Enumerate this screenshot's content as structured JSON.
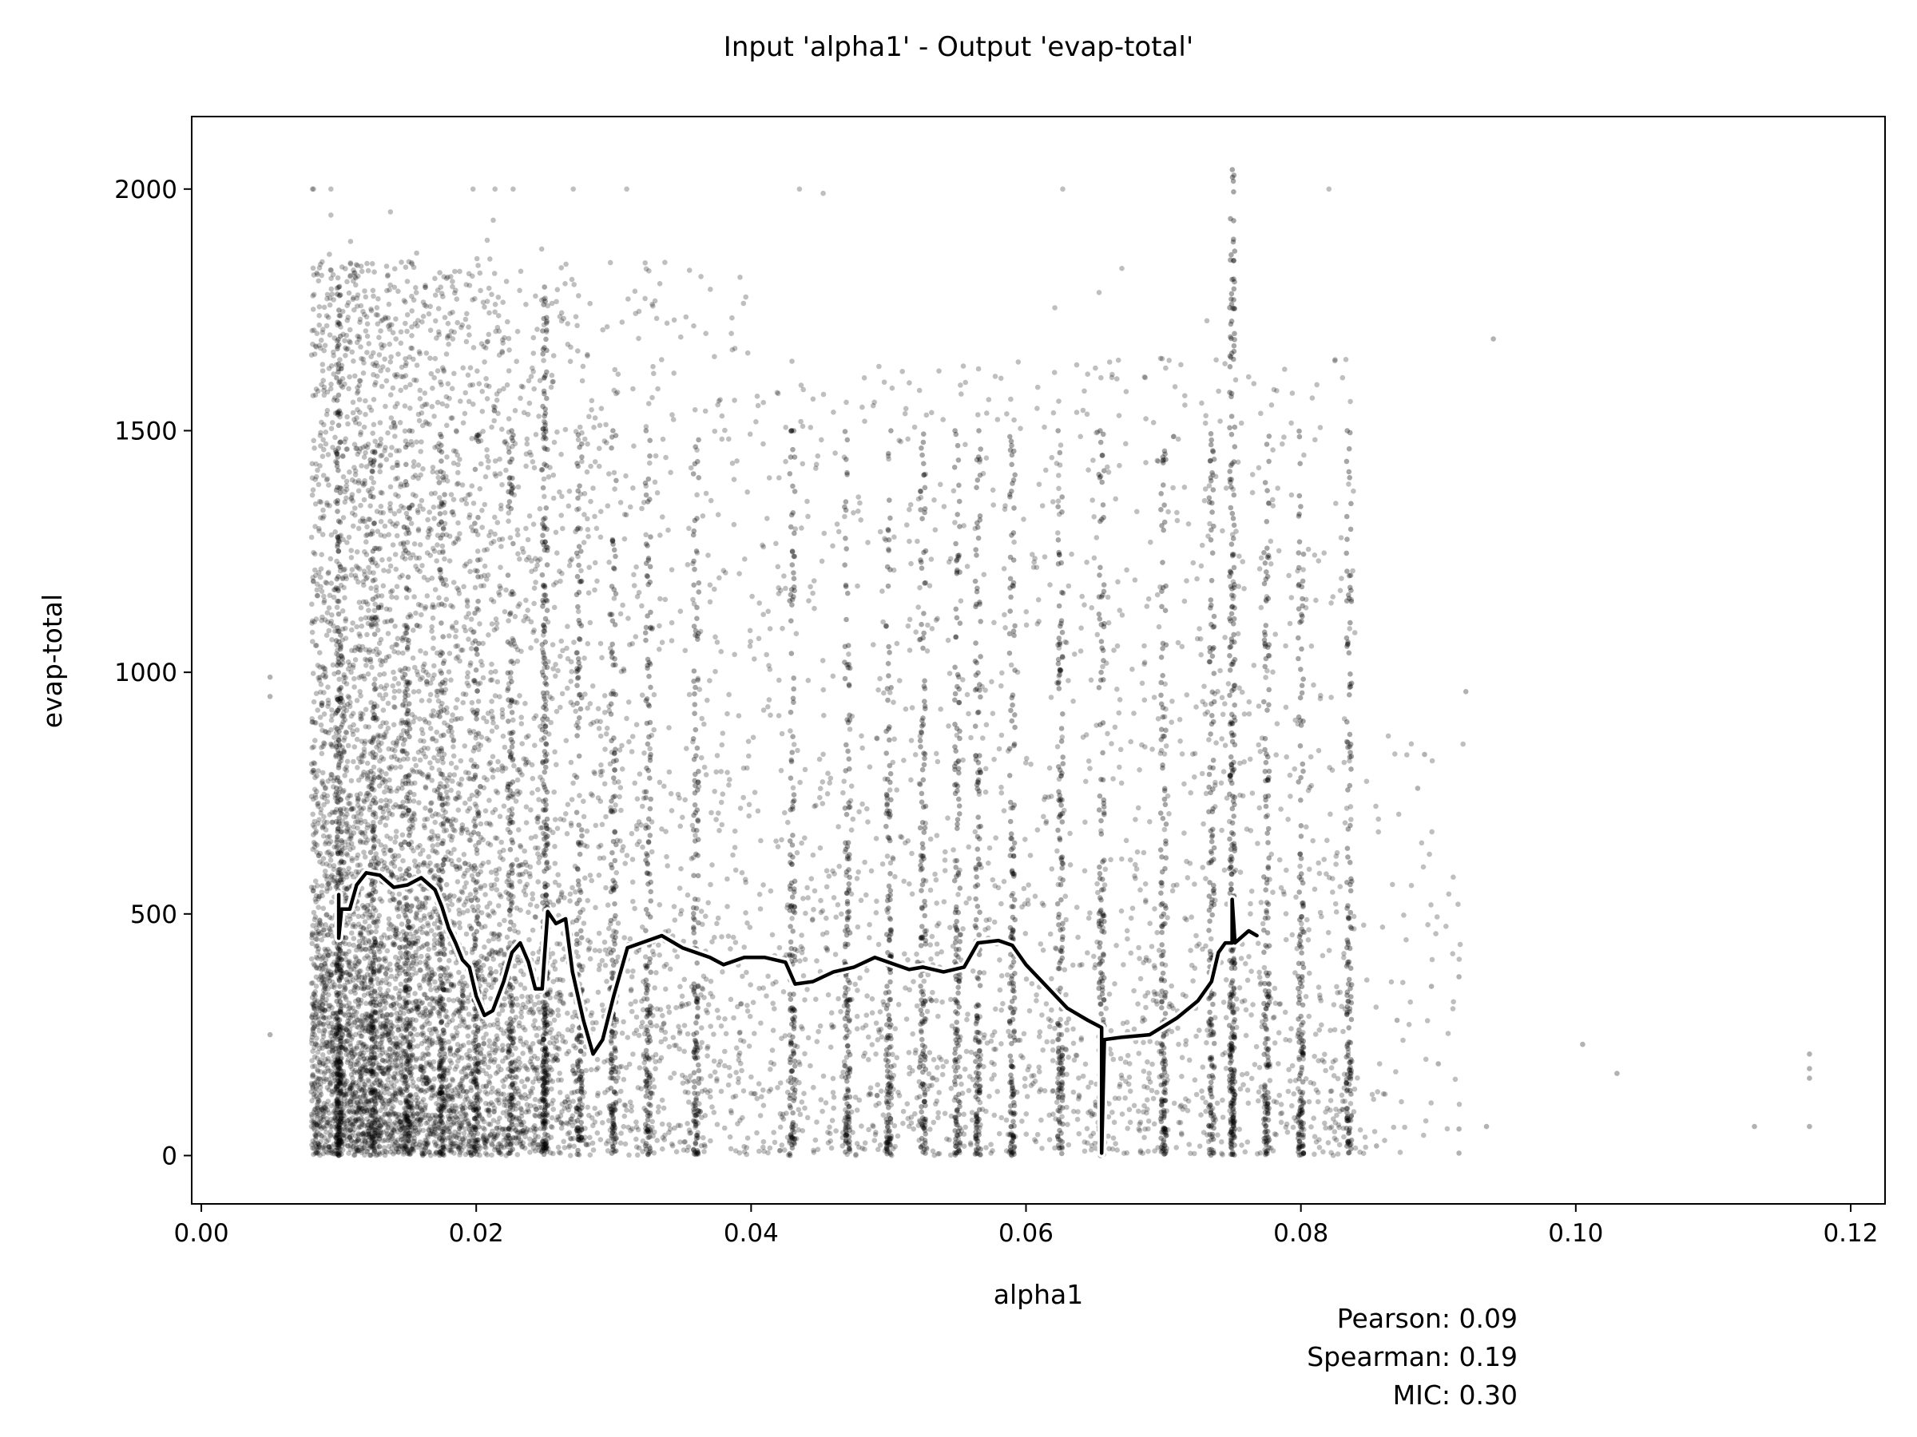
{
  "chart_data": {
    "type": "scatter",
    "title": "Input 'alpha1' - Output 'evap-total'",
    "xlabel": "alpha1",
    "ylabel": "evap-total",
    "xlim": [
      -0.0007,
      0.1225
    ],
    "ylim": [
      -100,
      2150
    ],
    "x_ticks": [
      0.0,
      0.02,
      0.04,
      0.06,
      0.08,
      0.1,
      0.12
    ],
    "x_tick_labels": [
      "0.00",
      "0.02",
      "0.04",
      "0.06",
      "0.08",
      "0.10",
      "0.12"
    ],
    "y_ticks": [
      0,
      500,
      1000,
      1500,
      2000
    ],
    "y_tick_labels": [
      "0",
      "500",
      "1000",
      "1500",
      "2000"
    ],
    "grid": false,
    "marker_color": "#000000",
    "marker_alpha": 0.25,
    "trend_color": "#000000",
    "trend_outline_color": "#ffffff",
    "scatter_summary": {
      "x_range": [
        0.005,
        0.117
      ],
      "y_range": [
        0,
        2050
      ],
      "dense_columns_x": [
        0.01,
        0.0125,
        0.015,
        0.0175,
        0.02,
        0.0225,
        0.025,
        0.0275,
        0.03,
        0.0325,
        0.036,
        0.043,
        0.047,
        0.05,
        0.0525,
        0.055,
        0.0565,
        0.059,
        0.0625,
        0.0655,
        0.07,
        0.0735,
        0.075,
        0.0775,
        0.08,
        0.0835
      ],
      "isolated_points": [
        {
          "x": 0.005,
          "y": 990
        },
        {
          "x": 0.005,
          "y": 950
        },
        {
          "x": 0.005,
          "y": 250
        },
        {
          "x": 0.0855,
          "y": 20
        },
        {
          "x": 0.087,
          "y": 280
        },
        {
          "x": 0.0885,
          "y": 760
        },
        {
          "x": 0.089,
          "y": 830
        },
        {
          "x": 0.0895,
          "y": 350
        },
        {
          "x": 0.09,
          "y": 190
        },
        {
          "x": 0.0915,
          "y": 370
        },
        {
          "x": 0.0915,
          "y": 55
        },
        {
          "x": 0.0915,
          "y": 5
        },
        {
          "x": 0.092,
          "y": 960
        },
        {
          "x": 0.0935,
          "y": 60
        },
        {
          "x": 0.094,
          "y": 1690
        },
        {
          "x": 0.1005,
          "y": 230
        },
        {
          "x": 0.103,
          "y": 170
        },
        {
          "x": 0.113,
          "y": 60
        },
        {
          "x": 0.117,
          "y": 210
        },
        {
          "x": 0.117,
          "y": 180
        },
        {
          "x": 0.117,
          "y": 160
        },
        {
          "x": 0.117,
          "y": 60
        }
      ]
    },
    "series": [
      {
        "type": "line",
        "points": [
          [
            0.01,
            540
          ],
          [
            0.01,
            450
          ],
          [
            0.0102,
            510
          ],
          [
            0.0108,
            510
          ],
          [
            0.0113,
            560
          ],
          [
            0.012,
            585
          ],
          [
            0.013,
            580
          ],
          [
            0.014,
            555
          ],
          [
            0.015,
            560
          ],
          [
            0.016,
            575
          ],
          [
            0.017,
            550
          ],
          [
            0.0175,
            515
          ],
          [
            0.018,
            470
          ],
          [
            0.0185,
            440
          ],
          [
            0.019,
            405
          ],
          [
            0.0195,
            390
          ],
          [
            0.02,
            330
          ],
          [
            0.0206,
            290
          ],
          [
            0.0212,
            300
          ],
          [
            0.022,
            360
          ],
          [
            0.0226,
            420
          ],
          [
            0.0232,
            440
          ],
          [
            0.0238,
            400
          ],
          [
            0.0243,
            345
          ],
          [
            0.0248,
            345
          ],
          [
            0.0252,
            505
          ],
          [
            0.0258,
            480
          ],
          [
            0.0265,
            490
          ],
          [
            0.027,
            380
          ],
          [
            0.0278,
            280
          ],
          [
            0.0285,
            210
          ],
          [
            0.0292,
            240
          ],
          [
            0.03,
            330
          ],
          [
            0.031,
            430
          ],
          [
            0.032,
            440
          ],
          [
            0.0335,
            455
          ],
          [
            0.035,
            430
          ],
          [
            0.037,
            410
          ],
          [
            0.038,
            395
          ],
          [
            0.0395,
            410
          ],
          [
            0.041,
            410
          ],
          [
            0.0425,
            400
          ],
          [
            0.0432,
            355
          ],
          [
            0.0445,
            360
          ],
          [
            0.046,
            380
          ],
          [
            0.0475,
            390
          ],
          [
            0.049,
            410
          ],
          [
            0.0505,
            395
          ],
          [
            0.0515,
            385
          ],
          [
            0.0525,
            390
          ],
          [
            0.054,
            380
          ],
          [
            0.0555,
            390
          ],
          [
            0.0565,
            440
          ],
          [
            0.058,
            445
          ],
          [
            0.059,
            435
          ],
          [
            0.06,
            395
          ],
          [
            0.0615,
            350
          ],
          [
            0.063,
            305
          ],
          [
            0.0645,
            280
          ],
          [
            0.0655,
            265
          ],
          [
            0.0655,
            5
          ],
          [
            0.0657,
            240
          ],
          [
            0.067,
            245
          ],
          [
            0.069,
            250
          ],
          [
            0.071,
            285
          ],
          [
            0.0725,
            320
          ],
          [
            0.0735,
            360
          ],
          [
            0.074,
            420
          ],
          [
            0.0745,
            440
          ],
          [
            0.075,
            440
          ],
          [
            0.075,
            530
          ],
          [
            0.0752,
            440
          ],
          [
            0.0762,
            465
          ],
          [
            0.0768,
            455
          ]
        ]
      }
    ],
    "stats": {
      "pearson": "Pearson: 0.09",
      "spearman": "Spearman: 0.19",
      "mic": "MIC: 0.30"
    }
  }
}
